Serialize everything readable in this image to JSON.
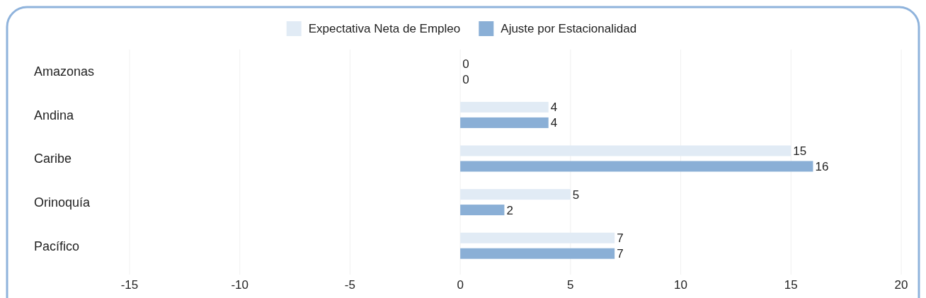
{
  "chart_data": {
    "type": "bar",
    "orientation": "horizontal",
    "categories": [
      "Amazonas",
      "Andina",
      "Caribe",
      "Orinoquía",
      "Pacífico"
    ],
    "series": [
      {
        "name": "Expectativa Neta de Empleo",
        "color": "#e1ebf5",
        "values": [
          0,
          4,
          15,
          5,
          7
        ]
      },
      {
        "name": "Ajuste por Estacionalidad",
        "color": "#8aafd6",
        "values": [
          0,
          4,
          16,
          2,
          7
        ]
      }
    ],
    "xlim": [
      -15,
      20
    ],
    "xticks": [
      -15,
      -10,
      -5,
      0,
      5,
      10,
      15,
      20
    ],
    "grid": "x",
    "legend": "top",
    "data_labels": true
  }
}
